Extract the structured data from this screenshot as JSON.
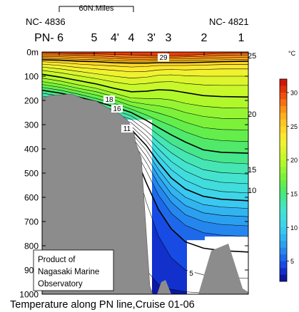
{
  "chart_data": {
    "type": "heatmap",
    "title": "Temperature along PN line,Cruise 01-06",
    "depth_range": [
      0,
      1000
    ],
    "y_ticks": [
      {
        "v": 0,
        "t": "0m"
      },
      {
        "v": 100,
        "t": "100"
      },
      {
        "v": 200,
        "t": "200"
      },
      {
        "v": 300,
        "t": "300"
      },
      {
        "v": 400,
        "t": "400"
      },
      {
        "v": 500,
        "t": "500"
      },
      {
        "v": 600,
        "t": "600"
      },
      {
        "v": 700,
        "t": "700"
      },
      {
        "v": 800,
        "t": "800"
      },
      {
        "v": 900,
        "t": "900"
      },
      {
        "v": 1000,
        "t": "1000"
      }
    ],
    "stations": [
      "PN- 6",
      "5",
      "4'",
      "4",
      "3'",
      "3",
      "2",
      "1"
    ],
    "station_codes": {
      "left": "NC- 4836",
      "right": "NC- 4821"
    },
    "scale_bar_label": "60N.Miles",
    "isotherms": [
      {
        "temp": 29,
        "label": "29"
      },
      {
        "temp": 25,
        "label": "25"
      },
      {
        "temp": 20,
        "label": "20"
      },
      {
        "temp": 18,
        "label": "18"
      },
      {
        "temp": 16,
        "label": "16"
      },
      {
        "temp": 15,
        "label": "15"
      },
      {
        "temp": 11,
        "label": "11"
      },
      {
        "temp": 10,
        "label": "10"
      },
      {
        "temp": 5,
        "label": "5"
      }
    ],
    "colorbar": {
      "unit": "°C",
      "min": 2,
      "max": 32,
      "ticks": [
        30,
        25,
        20,
        15,
        10,
        5
      ]
    },
    "grid": false
  },
  "credit": {
    "line1": "Product of",
    "line2": "Nagasaki Marine",
    "line3": "Observatory"
  }
}
